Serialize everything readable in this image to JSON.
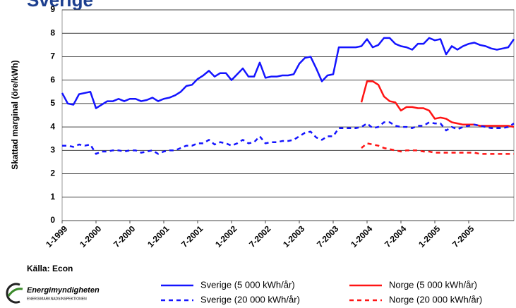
{
  "chart_data": {
    "type": "line",
    "title": "Sverige",
    "y_label": "Skattad marginal (öre/kWh)",
    "source": "Källa: Econ",
    "logo": {
      "name": "Energimyndigheten",
      "subtitle": "ENERGIMARKNADSINSPEKTIONEN"
    },
    "categories": [
      "1-1999",
      null,
      null,
      null,
      null,
      null,
      "1-2000",
      null,
      null,
      null,
      null,
      null,
      "7-2000",
      null,
      null,
      null,
      null,
      null,
      "1-2001",
      null,
      null,
      null,
      null,
      null,
      "7-2001",
      null,
      null,
      null,
      null,
      null,
      "1-2002",
      null,
      null,
      null,
      null,
      null,
      "7-2002",
      null,
      null,
      null,
      null,
      null,
      "1-2003",
      null,
      null,
      null,
      null,
      null,
      "7-2003",
      null,
      null,
      null,
      null,
      null,
      "1-2004",
      null,
      null,
      null,
      null,
      null,
      "7-2004",
      null,
      null,
      null,
      null,
      null,
      "1-2005",
      null,
      null,
      null,
      null,
      null,
      "7-2005",
      null,
      null,
      null,
      null,
      null,
      null,
      null,
      null
    ],
    "ylim": [
      0,
      9
    ],
    "yticks": [
      0,
      1,
      2,
      3,
      4,
      5,
      6,
      7,
      8,
      9
    ],
    "grid": true,
    "series": [
      {
        "name": "Sverige (5 000 kWh/år)",
        "color": "#1414ff",
        "dashed": false,
        "values": [
          5.45,
          5.0,
          4.95,
          5.4,
          5.45,
          5.5,
          4.8,
          4.95,
          5.1,
          5.1,
          5.2,
          5.1,
          5.2,
          5.2,
          5.1,
          5.15,
          5.25,
          5.1,
          5.2,
          5.25,
          5.35,
          5.5,
          5.75,
          5.8,
          6.05,
          6.2,
          6.4,
          6.15,
          6.3,
          6.3,
          6.0,
          6.25,
          6.5,
          6.15,
          6.15,
          6.75,
          6.1,
          6.15,
          6.15,
          6.2,
          6.2,
          6.25,
          6.7,
          6.95,
          7.0,
          6.5,
          5.95,
          6.2,
          6.25,
          7.4,
          7.4,
          7.4,
          7.4,
          7.45,
          7.75,
          7.4,
          7.5,
          7.8,
          7.8,
          7.55,
          7.45,
          7.4,
          7.3,
          7.55,
          7.55,
          7.8,
          7.7,
          7.75,
          7.1,
          7.45,
          7.3,
          7.45,
          7.55,
          7.6,
          7.5,
          7.45,
          7.35,
          7.3,
          7.35,
          7.4,
          7.75
        ]
      },
      {
        "name": "Norge (5 000 kWh/år)",
        "color": "#ff1414",
        "dashed": false,
        "values": [
          null,
          null,
          null,
          null,
          null,
          null,
          null,
          null,
          null,
          null,
          null,
          null,
          null,
          null,
          null,
          null,
          null,
          null,
          null,
          null,
          null,
          null,
          null,
          null,
          null,
          null,
          null,
          null,
          null,
          null,
          null,
          null,
          null,
          null,
          null,
          null,
          null,
          null,
          null,
          null,
          null,
          null,
          null,
          null,
          null,
          null,
          null,
          null,
          null,
          null,
          null,
          null,
          null,
          5.05,
          5.95,
          5.95,
          5.8,
          5.3,
          5.1,
          5.05,
          4.7,
          4.85,
          4.85,
          4.8,
          4.8,
          4.7,
          4.35,
          4.4,
          4.35,
          4.2,
          4.15,
          4.1,
          4.1,
          4.1,
          4.05,
          4.05,
          4.05,
          4.05,
          4.05,
          4.05,
          4.0
        ]
      },
      {
        "name": "Sverige (20 000 kWh/år)",
        "color": "#1414ff",
        "dashed": true,
        "values": [
          3.2,
          3.2,
          3.15,
          3.25,
          3.2,
          3.25,
          2.85,
          2.95,
          2.95,
          3.0,
          3.0,
          2.95,
          3.0,
          3.0,
          2.9,
          2.95,
          3.0,
          2.85,
          2.95,
          3.0,
          3.0,
          3.1,
          3.2,
          3.2,
          3.3,
          3.3,
          3.45,
          3.25,
          3.35,
          3.3,
          3.2,
          3.3,
          3.45,
          3.3,
          3.35,
          3.6,
          3.3,
          3.35,
          3.35,
          3.4,
          3.4,
          3.45,
          3.6,
          3.75,
          3.8,
          3.55,
          3.45,
          3.6,
          3.6,
          3.95,
          3.95,
          3.95,
          3.95,
          4.0,
          4.15,
          3.95,
          4.0,
          4.2,
          4.2,
          4.05,
          4.0,
          4.0,
          3.95,
          4.05,
          4.05,
          4.2,
          4.15,
          4.15,
          3.85,
          4.0,
          3.9,
          4.0,
          4.05,
          4.1,
          4.05,
          4.0,
          3.95,
          3.95,
          3.95,
          4.0,
          4.15
        ]
      },
      {
        "name": "Norge (20 000 kWh/år)",
        "color": "#ff1414",
        "dashed": true,
        "values": [
          null,
          null,
          null,
          null,
          null,
          null,
          null,
          null,
          null,
          null,
          null,
          null,
          null,
          null,
          null,
          null,
          null,
          null,
          null,
          null,
          null,
          null,
          null,
          null,
          null,
          null,
          null,
          null,
          null,
          null,
          null,
          null,
          null,
          null,
          null,
          null,
          null,
          null,
          null,
          null,
          null,
          null,
          null,
          null,
          null,
          null,
          null,
          null,
          null,
          null,
          null,
          null,
          null,
          3.1,
          3.3,
          3.25,
          3.2,
          3.1,
          3.05,
          3.0,
          2.95,
          3.0,
          3.0,
          3.0,
          2.95,
          2.95,
          2.9,
          2.9,
          2.9,
          2.9,
          2.9,
          2.9,
          2.9,
          2.9,
          2.85,
          2.85,
          2.85,
          2.85,
          2.85,
          2.85,
          2.85
        ]
      }
    ]
  }
}
